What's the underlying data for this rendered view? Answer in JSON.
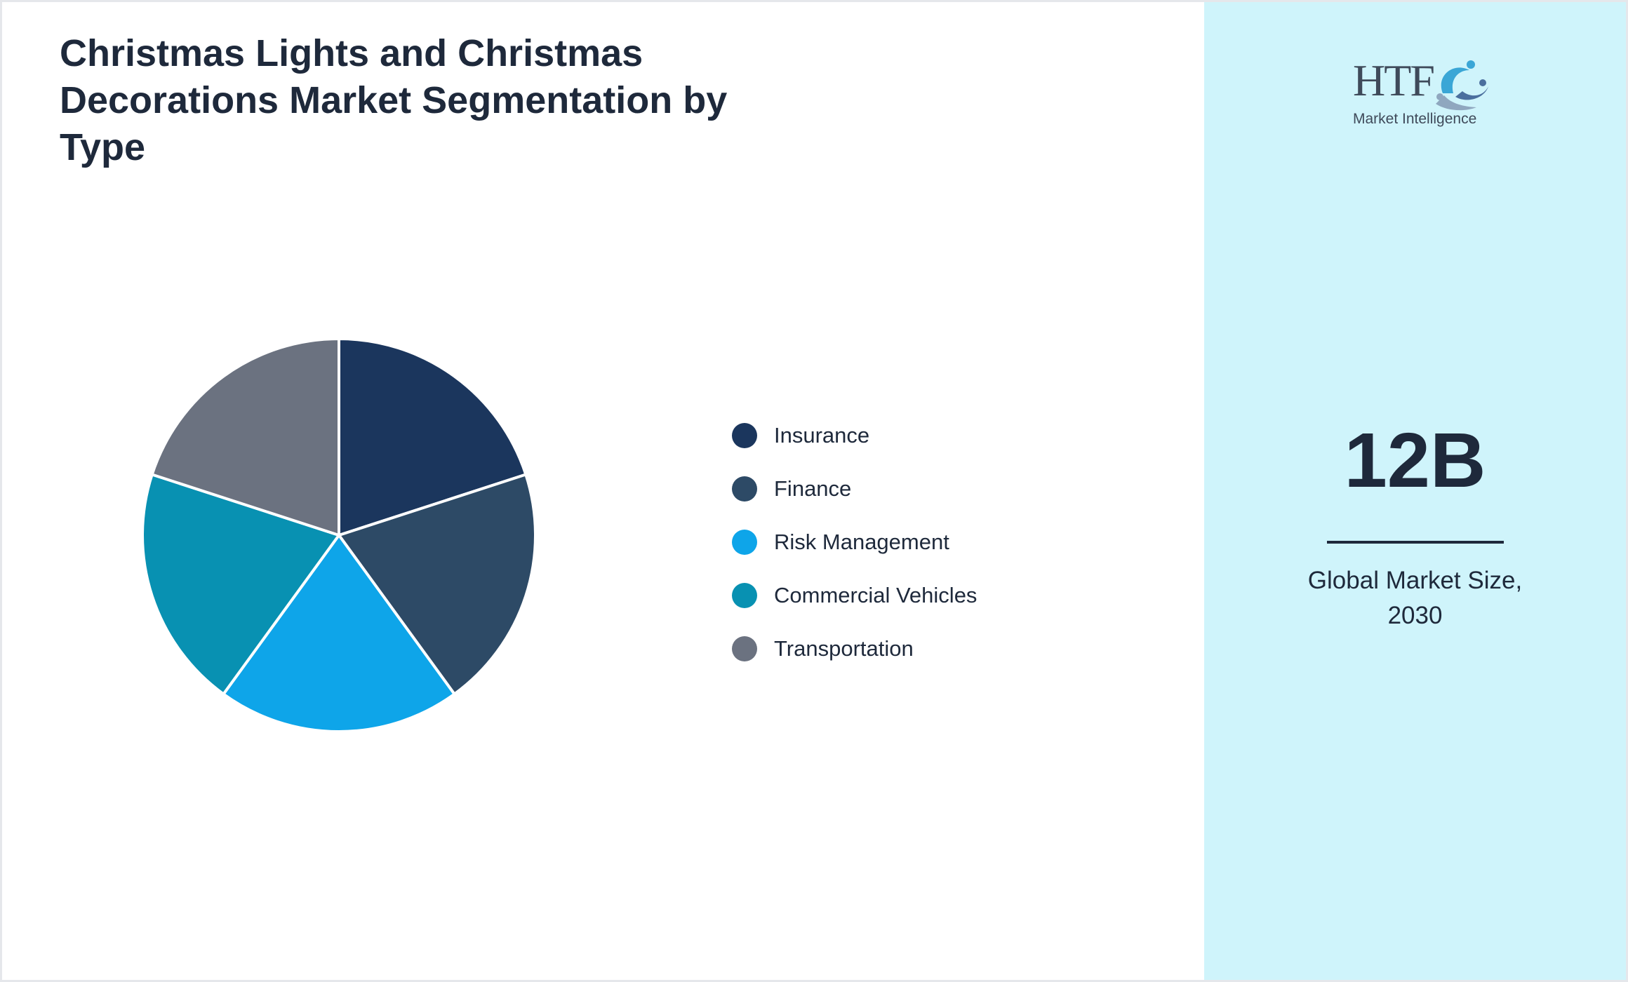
{
  "title": "Christmas Lights and Christmas Decorations Market Segmentation by Type",
  "logo": {
    "brand": "HTF",
    "tagline": "Market Intelligence",
    "icon": "htf-logo-mark"
  },
  "kpi": {
    "value": "12B",
    "caption": "Global Market Size,\n2030"
  },
  "colors": {
    "panel_background": "#cff4fb",
    "text": "#1e293b"
  },
  "chart_data": {
    "type": "pie",
    "title": "Christmas Lights and Christmas Decorations Market Segmentation by Type",
    "categories": [
      "Insurance",
      "Finance",
      "Risk Management",
      "Commercial Vehicles",
      "Transportation"
    ],
    "values": [
      20,
      20,
      20,
      20,
      20
    ],
    "colors": [
      "#1b365d",
      "#2d4a66",
      "#0ea5e9",
      "#0891b2",
      "#6b7280"
    ],
    "legend_position": "right",
    "start_angle_deg": 0,
    "direction": "clockwise"
  }
}
